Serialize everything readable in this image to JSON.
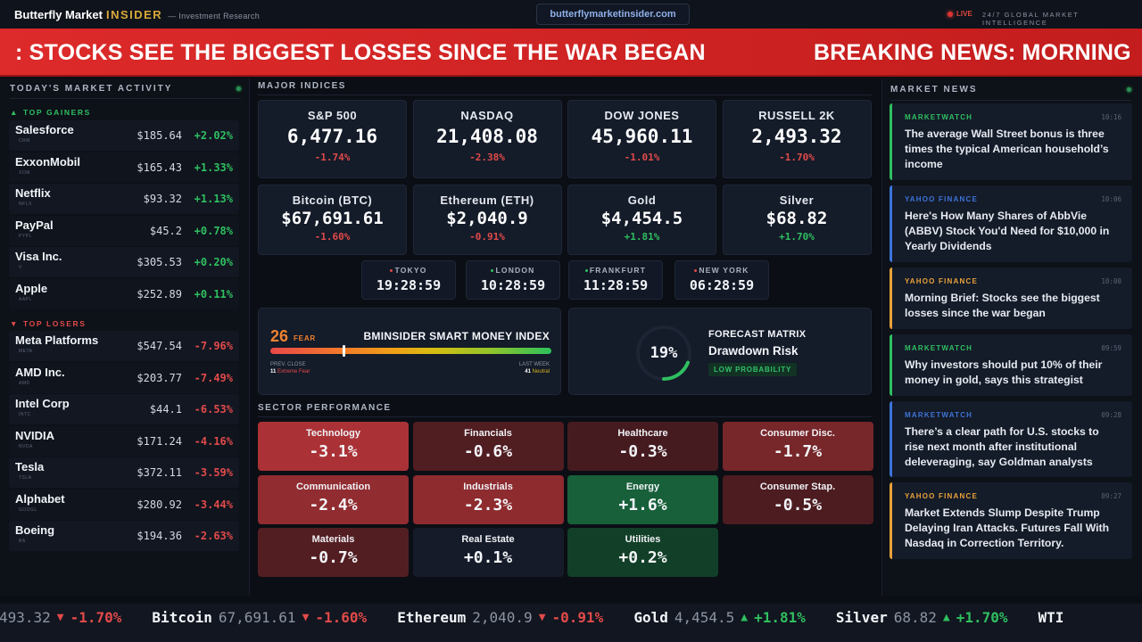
{
  "header": {
    "brand_name": "Butterfly Market",
    "brand_accent": "INSIDER",
    "brand_tagline": "— Investment Research",
    "url": "butterflymarketinsider.com",
    "live_label": "LIVE",
    "tagline": "24/7 GLOBAL MARKET INTELLIGENCE"
  },
  "banner": {
    "segment_1": ": STOCKS SEE THE BIGGEST LOSSES SINCE THE WAR BEGAN",
    "segment_2": "BREAKING NEWS: MORNING"
  },
  "market_activity": {
    "title": "TODAY'S MARKET ACTIVITY",
    "gainers_label": "TOP GAINERS",
    "losers_label": "TOP LOSERS",
    "gainers": [
      {
        "name": "Salesforce",
        "ticker": "CRM",
        "price": "$185.64",
        "change": "+2.02%"
      },
      {
        "name": "ExxonMobil",
        "ticker": "XOM",
        "price": "$165.43",
        "change": "+1.33%"
      },
      {
        "name": "Netflix",
        "ticker": "NFLX",
        "price": "$93.32",
        "change": "+1.13%"
      },
      {
        "name": "PayPal",
        "ticker": "PYPL",
        "price": "$45.2",
        "change": "+0.78%"
      },
      {
        "name": "Visa Inc.",
        "ticker": "V",
        "price": "$305.53",
        "change": "+0.20%"
      },
      {
        "name": "Apple",
        "ticker": "AAPL",
        "price": "$252.89",
        "change": "+0.11%"
      }
    ],
    "losers": [
      {
        "name": "Meta Platforms",
        "ticker": "META",
        "price": "$547.54",
        "change": "-7.96%"
      },
      {
        "name": "AMD Inc.",
        "ticker": "AMD",
        "price": "$203.77",
        "change": "-7.49%"
      },
      {
        "name": "Intel Corp",
        "ticker": "INTC",
        "price": "$44.1",
        "change": "-6.53%"
      },
      {
        "name": "NVIDIA",
        "ticker": "NVDA",
        "price": "$171.24",
        "change": "-4.16%"
      },
      {
        "name": "Tesla",
        "ticker": "TSLA",
        "price": "$372.11",
        "change": "-3.59%"
      },
      {
        "name": "Alphabet",
        "ticker": "GOOGL",
        "price": "$280.92",
        "change": "-3.44%"
      },
      {
        "name": "Boeing",
        "ticker": "BA",
        "price": "$194.36",
        "change": "-2.63%"
      }
    ]
  },
  "indices": {
    "title": "MAJOR INDICES",
    "items": [
      {
        "name": "S&P 500",
        "value": "6,477.16",
        "change": "-1.74%",
        "dir": "neg"
      },
      {
        "name": "NASDAQ",
        "value": "21,408.08",
        "change": "-2.38%",
        "dir": "neg"
      },
      {
        "name": "DOW JONES",
        "value": "45,960.11",
        "change": "-1.01%",
        "dir": "neg"
      },
      {
        "name": "RUSSELL 2K",
        "value": "2,493.32",
        "change": "-1.70%",
        "dir": "neg"
      },
      {
        "name": "Bitcoin (BTC)",
        "value": "$67,691.61",
        "change": "-1.60%",
        "dir": "neg"
      },
      {
        "name": "Ethereum (ETH)",
        "value": "$2,040.9",
        "change": "-0.91%",
        "dir": "neg"
      },
      {
        "name": "Gold",
        "value": "$4,454.5",
        "change": "+1.81%",
        "dir": "pos"
      },
      {
        "name": "Silver",
        "value": "$68.82",
        "change": "+1.70%",
        "dir": "pos"
      }
    ]
  },
  "clocks": [
    {
      "city": "TOKYO",
      "time": "19:28:59",
      "status": "closed"
    },
    {
      "city": "LONDON",
      "time": "10:28:59",
      "status": "open"
    },
    {
      "city": "FRANKFURT",
      "time": "11:28:59",
      "status": "open"
    },
    {
      "city": "NEW YORK",
      "time": "06:28:59",
      "status": "closed"
    }
  ],
  "fear_index": {
    "value": "26",
    "value_pct": 26,
    "label": "FEAR",
    "title": "BMINSIDER SMART MONEY INDEX",
    "prev_close_label": "PREV. CLOSE",
    "prev_close_value": "11",
    "prev_close_state": "Extreme Fear",
    "last_week_label": "LAST WEEK",
    "last_week_value": "41",
    "last_week_state": "Neutral"
  },
  "forecast": {
    "percent": "19%",
    "percent_value": 19,
    "label": "FORECAST MATRIX",
    "title": "Drawdown Risk",
    "badge": "LOW PROBABILITY"
  },
  "sectors": {
    "title": "SECTOR PERFORMANCE",
    "items": [
      {
        "name": "Technology",
        "value": "-3.1%",
        "change": -3.1
      },
      {
        "name": "Financials",
        "value": "-0.6%",
        "change": -0.6
      },
      {
        "name": "Healthcare",
        "value": "-0.3%",
        "change": -0.3
      },
      {
        "name": "Consumer Disc.",
        "value": "-1.7%",
        "change": -1.7
      },
      {
        "name": "Communication",
        "value": "-2.4%",
        "change": -2.4
      },
      {
        "name": "Industrials",
        "value": "-2.3%",
        "change": -2.3
      },
      {
        "name": "Energy",
        "value": "+1.6%",
        "change": 1.6
      },
      {
        "name": "Consumer Stap.",
        "value": "-0.5%",
        "change": -0.5
      },
      {
        "name": "Materials",
        "value": "-0.7%",
        "change": -0.7
      },
      {
        "name": "Real Estate",
        "value": "+0.1%",
        "change": 0.1
      },
      {
        "name": "Utilities",
        "value": "+0.2%",
        "change": 0.2
      }
    ]
  },
  "news": {
    "title": "MARKET NEWS",
    "items": [
      {
        "source": "MARKETWATCH",
        "time": "10:16",
        "title": "The average Wall Street bonus is three times the typical American household’s income",
        "accent": "#2fbf60"
      },
      {
        "source": "YAHOO FINANCE",
        "time": "10:06",
        "title": "Here's How Many Shares of AbbVie (ABBV) Stock You'd Need for $10,000 in Yearly Dividends",
        "accent": "#3d74d8"
      },
      {
        "source": "YAHOO FINANCE",
        "time": "10:00",
        "title": "Morning Brief: Stocks see the biggest losses since the war began",
        "accent": "#e8a23a"
      },
      {
        "source": "MARKETWATCH",
        "time": "09:59",
        "title": "Why investors should put 10% of their money in gold, says this strategist",
        "accent": "#2fbf60"
      },
      {
        "source": "MARKETWATCH",
        "time": "09:28",
        "title": "There’s a clear path for U.S. stocks to rise next month after institutional deleveraging, say Goldman analysts",
        "accent": "#3d74d8"
      },
      {
        "source": "YAHOO FINANCE",
        "time": "09:27",
        "title": "Market Extends Slump Despite Trump Delaying Iran Attacks. Futures Fall With Nasdaq in Correction Territory.",
        "accent": "#e8a23a"
      }
    ]
  },
  "ticker": [
    {
      "name": "",
      "value": "493.32",
      "arrow": "▼",
      "change": "-1.70%",
      "dir": "neg"
    },
    {
      "name": "Bitcoin",
      "value": "67,691.61",
      "arrow": "▼",
      "change": "-1.60%",
      "dir": "neg"
    },
    {
      "name": "Ethereum",
      "value": "2,040.9",
      "arrow": "▼",
      "change": "-0.91%",
      "dir": "neg"
    },
    {
      "name": "Gold",
      "value": "4,454.5",
      "arrow": "▲",
      "change": "+1.81%",
      "dir": "pos"
    },
    {
      "name": "Silver",
      "value": "68.82",
      "arrow": "▲",
      "change": "+1.70%",
      "dir": "pos"
    },
    {
      "name": "WTI",
      "value": "",
      "arrow": "",
      "change": "",
      "dir": "neg"
    }
  ],
  "colors": {
    "positive": "#2fbf60",
    "negative": "#e24a4a",
    "brand_accent": "#d9a93a",
    "banner_red": "#d42424"
  }
}
